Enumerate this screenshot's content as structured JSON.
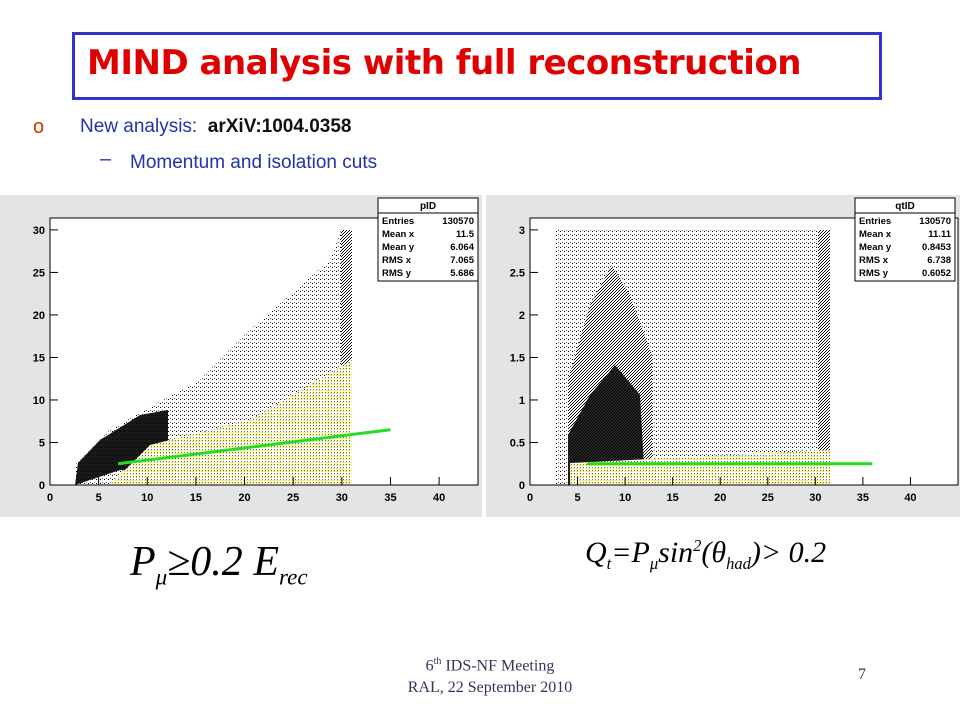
{
  "header": {
    "title": "MIND analysis with full reconstruction"
  },
  "bullets": [
    {
      "text": "New analysis:",
      "ref": "arXiV:1004.0358"
    },
    {
      "text": "Momentum and isolation cuts"
    }
  ],
  "chart_data": [
    {
      "type": "scatter",
      "title": "pID",
      "stats": [
        {
          "label": "Entries",
          "value": 130570
        },
        {
          "label": "Mean x",
          "value": 11.5
        },
        {
          "label": "Mean y",
          "value": 6.064
        },
        {
          "label": "RMS x",
          "value": 7.065
        },
        {
          "label": "RMS y",
          "value": 5.686
        }
      ],
      "xlim": [
        0,
        44
      ],
      "ylim": [
        0,
        31.4
      ],
      "xticks": [
        0,
        5,
        10,
        15,
        20,
        25,
        30,
        35,
        40
      ],
      "yticks": [
        0,
        5,
        10,
        15,
        20,
        25,
        30
      ],
      "cut": {
        "color": "#22dd22",
        "x": [
          7,
          35
        ],
        "y": [
          2.5,
          6.5
        ]
      }
    },
    {
      "type": "scatter",
      "title": "qtID",
      "stats": [
        {
          "label": "Entries",
          "value": 130570
        },
        {
          "label": "Mean x",
          "value": 11.11
        },
        {
          "label": "Mean y",
          "value": 0.8453
        },
        {
          "label": "RMS x",
          "value": 6.738
        },
        {
          "label": "RMS y",
          "value": 0.6052
        }
      ],
      "xlim": [
        0,
        45
      ],
      "ylim": [
        0,
        3.14
      ],
      "xticks": [
        0,
        5,
        10,
        15,
        20,
        25,
        30,
        35,
        40
      ],
      "yticks": [
        0,
        0.5,
        1,
        1.5,
        2,
        2.5,
        3
      ],
      "cut": {
        "color": "#22dd22",
        "x": [
          6,
          36
        ],
        "y": [
          0.25,
          0.25
        ]
      }
    }
  ],
  "formulas": [
    [
      {
        "text": "P"
      },
      {
        "sub": "μ"
      },
      {
        "text": "≥0.2 "
      },
      {
        "text": "E"
      },
      {
        "sub": "rec"
      }
    ],
    [
      {
        "text": "Q"
      },
      {
        "sub": "t"
      },
      {
        "text": "=P"
      },
      {
        "sub": "μ"
      },
      {
        "text": "sin"
      },
      {
        "sup": "2"
      },
      {
        "text": "(θ"
      },
      {
        "sub": "had"
      },
      {
        "text": ")> 0.2"
      }
    ]
  ],
  "footer": {
    "line1": "6",
    "line1_sup": "th",
    "line1_rest": " IDS-NF Meeting",
    "line2": "RAL, 22 September 2010",
    "page": "7"
  }
}
